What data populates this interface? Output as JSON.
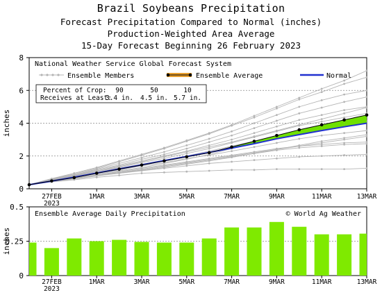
{
  "header": {
    "title": "Brazil Soybeans Precipitation",
    "subtitle1": "Forecast Precipitation Compared to Normal (inches)",
    "subtitle2": "Production-Weighted Area Average",
    "subtitle3": "15-Day Forecast Beginning 26 February 2023"
  },
  "chart_data": [
    {
      "type": "line",
      "box_title": "National Weather Service Global Forecast System",
      "ylabel": "inches",
      "ylim": [
        0,
        8
      ],
      "yticks": [
        "0",
        "2",
        "4",
        "6",
        "8"
      ],
      "x": [
        "26FEB",
        "27FEB",
        "28FEB",
        "1MAR",
        "2MAR",
        "3MAR",
        "4MAR",
        "5MAR",
        "6MAR",
        "7MAR",
        "8MAR",
        "9MAR",
        "10MAR",
        "11MAR",
        "12MAR",
        "13MAR"
      ],
      "xtick_labels": [
        {
          "label": "27FEB",
          "sub": "2023",
          "day": 1
        },
        {
          "label": "1MAR",
          "sub": "",
          "day": 3
        },
        {
          "label": "3MAR",
          "sub": "",
          "day": 5
        },
        {
          "label": "5MAR",
          "sub": "",
          "day": 7
        },
        {
          "label": "7MAR",
          "sub": "",
          "day": 9
        },
        {
          "label": "9MAR",
          "sub": "",
          "day": 11
        },
        {
          "label": "11MAR",
          "sub": "",
          "day": 13
        },
        {
          "label": "13MAR",
          "sub": "",
          "day": 15
        }
      ],
      "legend": {
        "members": "Ensemble Members",
        "average": "Ensemble Average",
        "normal": "Normal",
        "position": "top"
      },
      "percent_table": {
        "row1_label": "Percent of Crop:",
        "row1_values": [
          "90",
          "50",
          "10"
        ],
        "row2_label": "Receives at Least:",
        "row2_values": [
          "3.4 in.",
          "4.5 in.",
          "5.7 in."
        ]
      },
      "series": [
        {
          "name": "Ensemble Average",
          "values": [
            0.25,
            0.48,
            0.68,
            0.95,
            1.2,
            1.45,
            1.7,
            1.95,
            2.2,
            2.55,
            2.9,
            3.25,
            3.6,
            3.9,
            4.2,
            4.5
          ]
        },
        {
          "name": "Normal",
          "values": [
            0.25,
            0.47,
            0.71,
            0.96,
            1.21,
            1.46,
            1.72,
            1.97,
            2.22,
            2.48,
            2.75,
            3.05,
            3.3,
            3.55,
            3.78,
            4.0
          ]
        }
      ],
      "members": [
        [
          0.25,
          0.42,
          0.55,
          0.7,
          0.82,
          0.95,
          1.0,
          1.05,
          1.1,
          1.15,
          1.15,
          1.2,
          1.2,
          1.2,
          1.2,
          1.25
        ],
        [
          0.25,
          0.45,
          0.6,
          0.8,
          0.95,
          1.1,
          1.25,
          1.4,
          1.55,
          1.65,
          1.75,
          1.85,
          1.95,
          2.0,
          2.05,
          2.1
        ],
        [
          0.25,
          0.47,
          0.65,
          0.85,
          1.05,
          1.25,
          1.45,
          1.65,
          1.85,
          2.05,
          2.25,
          2.45,
          2.6,
          2.7,
          2.8,
          2.85
        ],
        [
          0.25,
          0.5,
          0.7,
          0.95,
          1.15,
          1.4,
          1.6,
          1.85,
          2.05,
          2.3,
          2.55,
          2.8,
          3.05,
          3.25,
          3.4,
          3.55
        ],
        [
          0.25,
          0.5,
          0.72,
          1.0,
          1.25,
          1.5,
          1.75,
          2.0,
          2.3,
          2.6,
          2.9,
          3.2,
          3.5,
          3.7,
          3.9,
          4.1
        ],
        [
          0.25,
          0.52,
          0.75,
          1.05,
          1.3,
          1.6,
          1.85,
          2.15,
          2.45,
          2.8,
          3.15,
          3.5,
          3.85,
          4.1,
          4.35,
          4.6
        ],
        [
          0.25,
          0.55,
          0.8,
          1.1,
          1.4,
          1.7,
          2.0,
          2.3,
          2.65,
          3.0,
          3.4,
          3.8,
          4.2,
          4.5,
          4.8,
          5.0
        ],
        [
          0.25,
          0.55,
          0.82,
          1.15,
          1.45,
          1.8,
          2.1,
          2.45,
          2.85,
          3.25,
          3.7,
          4.15,
          4.6,
          4.95,
          5.3,
          5.6
        ],
        [
          0.25,
          0.58,
          0.85,
          1.2,
          1.55,
          1.9,
          2.25,
          2.65,
          3.05,
          3.5,
          4.0,
          4.5,
          5.0,
          5.4,
          5.75,
          6.0
        ],
        [
          0.25,
          0.6,
          0.9,
          1.25,
          1.65,
          2.05,
          2.45,
          2.9,
          3.35,
          3.85,
          4.35,
          4.9,
          5.45,
          5.9,
          6.4,
          6.8
        ],
        [
          0.25,
          0.62,
          0.95,
          1.3,
          1.7,
          2.1,
          2.5,
          2.95,
          3.4,
          3.9,
          4.45,
          5.0,
          5.55,
          6.1,
          6.6,
          7.2
        ],
        [
          0.25,
          0.48,
          0.65,
          0.85,
          1.0,
          1.2,
          1.4,
          1.6,
          1.8,
          2.0,
          2.2,
          2.4,
          2.6,
          2.8,
          3.0,
          3.2
        ],
        [
          0.25,
          0.5,
          0.7,
          0.9,
          1.1,
          1.3,
          1.55,
          1.8,
          2.1,
          2.45,
          2.8,
          3.1,
          3.4,
          3.65,
          3.9,
          4.1
        ],
        [
          0.25,
          0.46,
          0.62,
          0.8,
          0.98,
          1.15,
          1.35,
          1.55,
          1.75,
          1.95,
          2.15,
          2.35,
          2.5,
          2.6,
          2.7,
          2.75
        ],
        [
          0.25,
          0.52,
          0.78,
          1.05,
          1.35,
          1.65,
          1.95,
          2.25,
          2.55,
          2.85,
          3.2,
          3.55,
          3.9,
          4.25,
          4.6,
          4.95
        ],
        [
          0.25,
          0.44,
          0.6,
          0.78,
          0.95,
          1.12,
          1.3,
          1.5,
          1.7,
          1.92,
          2.15,
          2.4,
          2.65,
          2.9,
          3.1,
          3.3
        ]
      ]
    },
    {
      "type": "bar",
      "box_title": "Ensemble Average Daily Precipitation",
      "credit": "© World Ag Weather",
      "ylabel": "inches",
      "ylim": [
        0,
        0.5
      ],
      "yticks": [
        "0",
        "0.25",
        "0.5"
      ],
      "categories": [
        "26FEB",
        "27FEB",
        "28FEB",
        "1MAR",
        "2MAR",
        "3MAR",
        "4MAR",
        "5MAR",
        "6MAR",
        "7MAR",
        "8MAR",
        "9MAR",
        "10MAR",
        "11MAR",
        "12MAR",
        "13MAR"
      ],
      "values": [
        0.24,
        0.2,
        0.27,
        0.25,
        0.26,
        0.245,
        0.24,
        0.24,
        0.27,
        0.35,
        0.35,
        0.39,
        0.355,
        0.3,
        0.3,
        0.305
      ],
      "color": "#7fea00"
    }
  ],
  "colors": {
    "members": "#b4b4b4",
    "average": "#000000",
    "normal": "#2030d0",
    "above_fill": "#6fe000",
    "bar": "#7fea00"
  }
}
